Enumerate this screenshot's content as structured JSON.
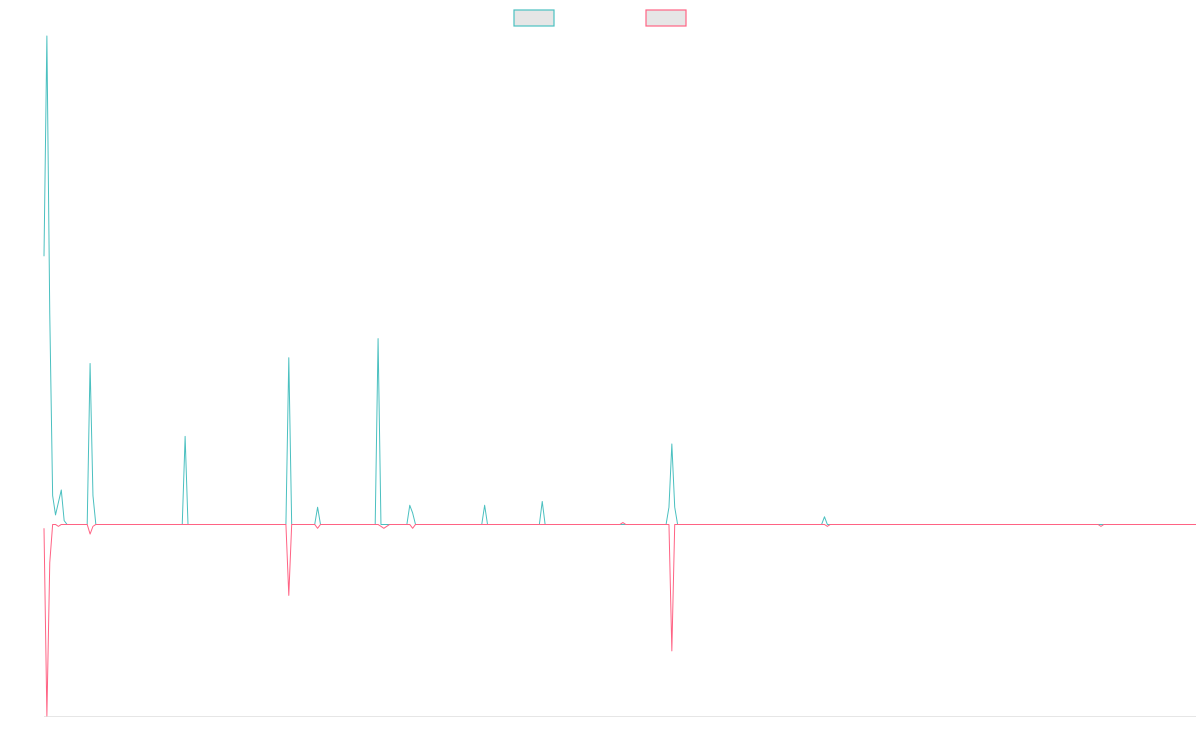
{
  "chart_data": {
    "type": "line",
    "title": "",
    "xlabel": "",
    "ylabel": "",
    "xlim": [
      0,
      200
    ],
    "ylim": [
      -100,
      255
    ],
    "grid": false,
    "legend": "top-center",
    "series": [
      {
        "color": "#4bc0c0",
        "points": [
          [
            0,
            140
          ],
          [
            0.5,
            255
          ],
          [
            1,
            110
          ],
          [
            1.5,
            15
          ],
          [
            2,
            5
          ],
          [
            3,
            18
          ],
          [
            3.5,
            2
          ],
          [
            4,
            0
          ],
          [
            7.5,
            0
          ],
          [
            8,
            84
          ],
          [
            8.5,
            15
          ],
          [
            9,
            0
          ],
          [
            24,
            0
          ],
          [
            24.5,
            46
          ],
          [
            25,
            0
          ],
          [
            42,
            0
          ],
          [
            42.5,
            87
          ],
          [
            43,
            0
          ],
          [
            47,
            0
          ],
          [
            47.5,
            9
          ],
          [
            48,
            0
          ],
          [
            57.5,
            0
          ],
          [
            58,
            97
          ],
          [
            58.5,
            0
          ],
          [
            63,
            0
          ],
          [
            63.5,
            10
          ],
          [
            64,
            6
          ],
          [
            64.5,
            0
          ],
          [
            76,
            0
          ],
          [
            76.5,
            10
          ],
          [
            77,
            0
          ],
          [
            86,
            0
          ],
          [
            86.5,
            12
          ],
          [
            87,
            0
          ],
          [
            108,
            0
          ],
          [
            108.5,
            9
          ],
          [
            109,
            42
          ],
          [
            109.5,
            9
          ],
          [
            110,
            0
          ],
          [
            135,
            0
          ],
          [
            135.5,
            4
          ],
          [
            136,
            0
          ],
          [
            200,
            0
          ]
        ]
      },
      {
        "color": "#ff6384",
        "points": [
          [
            0,
            -2
          ],
          [
            0.5,
            -100
          ],
          [
            1,
            -20
          ],
          [
            1.5,
            0
          ],
          [
            2,
            0
          ],
          [
            2.5,
            -1
          ],
          [
            3,
            0
          ],
          [
            7.5,
            0
          ],
          [
            8,
            -5
          ],
          [
            8.5,
            -1
          ],
          [
            9,
            0
          ],
          [
            42,
            0
          ],
          [
            42.5,
            -37
          ],
          [
            43,
            0
          ],
          [
            47,
            0
          ],
          [
            47.5,
            -2
          ],
          [
            48,
            0
          ],
          [
            58,
            0
          ],
          [
            59,
            -2
          ],
          [
            60,
            0
          ],
          [
            63.5,
            0
          ],
          [
            64,
            -2
          ],
          [
            64.5,
            0
          ],
          [
            100,
            0
          ],
          [
            100.5,
            1
          ],
          [
            101,
            0
          ],
          [
            108.5,
            0
          ],
          [
            109,
            -66
          ],
          [
            109.5,
            0
          ],
          [
            135.5,
            0
          ],
          [
            136,
            -1
          ],
          [
            136.5,
            0
          ],
          [
            183,
            0
          ],
          [
            183.5,
            -1
          ],
          [
            184,
            0
          ],
          [
            200,
            0
          ]
        ]
      }
    ]
  }
}
